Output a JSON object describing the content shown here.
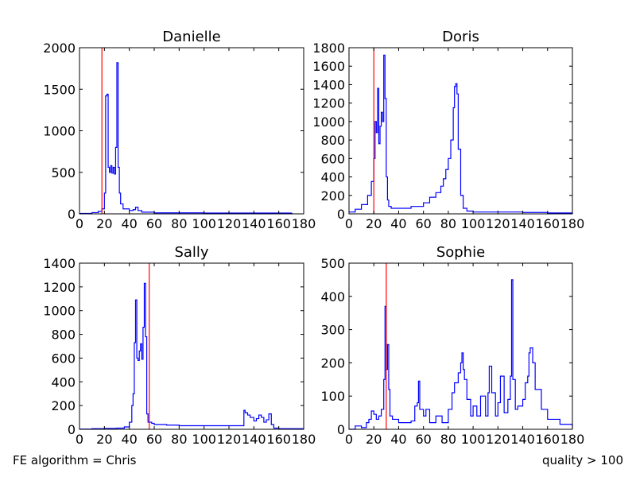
{
  "footer": {
    "left": "FE algorithm = Chris",
    "right": "quality > 100"
  },
  "colors": {
    "histogram": "#0000ff",
    "threshold": "#ff0000",
    "axes": "#000000"
  },
  "chart_data": [
    {
      "type": "histogram",
      "title": "Danielle",
      "xlim": [
        0,
        180
      ],
      "ylim": [
        0,
        2000
      ],
      "xticks": [
        0,
        20,
        40,
        60,
        80,
        100,
        120,
        140,
        160,
        180
      ],
      "yticks": [
        0,
        500,
        1000,
        1500,
        2000
      ],
      "threshold_x": 18,
      "bin_width": 1,
      "x": [
        0,
        10,
        15,
        18,
        20,
        21,
        22,
        23,
        24,
        25,
        26,
        27,
        28,
        29,
        30,
        31,
        32,
        33,
        35,
        40,
        43,
        45,
        47,
        50,
        60,
        100,
        140,
        170
      ],
      "values": [
        5,
        15,
        30,
        60,
        250,
        1420,
        1440,
        560,
        500,
        580,
        490,
        560,
        480,
        800,
        1820,
        560,
        250,
        120,
        60,
        40,
        50,
        80,
        40,
        20,
        12,
        10,
        10,
        5
      ]
    },
    {
      "type": "histogram",
      "title": "Doris",
      "xlim": [
        0,
        180
      ],
      "ylim": [
        0,
        1800
      ],
      "xticks": [
        0,
        20,
        40,
        60,
        80,
        100,
        120,
        140,
        160,
        180
      ],
      "yticks": [
        0,
        200,
        400,
        600,
        800,
        1000,
        1200,
        1400,
        1600,
        1800
      ],
      "threshold_x": 20,
      "bin_width": 1,
      "x": [
        0,
        5,
        10,
        15,
        18,
        20,
        21,
        22,
        23,
        24,
        25,
        26,
        27,
        28,
        29,
        30,
        31,
        32,
        34,
        40,
        50,
        60,
        65,
        70,
        74,
        76,
        78,
        80,
        82,
        84,
        85,
        86,
        87,
        88,
        90,
        92,
        95,
        100,
        120,
        140,
        160,
        180
      ],
      "values": [
        20,
        50,
        100,
        200,
        350,
        600,
        1000,
        880,
        1360,
        760,
        950,
        1100,
        1000,
        1720,
        1250,
        400,
        150,
        80,
        60,
        60,
        80,
        120,
        180,
        230,
        300,
        380,
        480,
        600,
        800,
        1150,
        1380,
        1410,
        1300,
        700,
        200,
        60,
        30,
        20,
        20,
        15,
        10,
        5
      ]
    },
    {
      "type": "histogram",
      "title": "Sally",
      "xlim": [
        0,
        180
      ],
      "ylim": [
        0,
        1400
      ],
      "xticks": [
        0,
        20,
        40,
        60,
        80,
        100,
        120,
        140,
        160,
        180
      ],
      "yticks": [
        0,
        200,
        400,
        600,
        800,
        1000,
        1200,
        1400
      ],
      "threshold_x": 56,
      "bin_width": 1,
      "x": [
        0,
        10,
        20,
        30,
        36,
        40,
        42,
        43,
        44,
        45,
        46,
        47,
        48,
        49,
        50,
        51,
        52,
        53,
        54,
        55,
        56,
        58,
        60,
        70,
        80,
        100,
        120,
        132,
        133,
        135,
        137,
        140,
        142,
        144,
        146,
        148,
        150,
        152,
        154,
        156,
        160,
        180
      ],
      "values": [
        2,
        5,
        8,
        10,
        20,
        60,
        200,
        300,
        730,
        1090,
        600,
        580,
        660,
        720,
        590,
        860,
        1230,
        780,
        130,
        60,
        60,
        50,
        40,
        35,
        30,
        30,
        30,
        160,
        140,
        120,
        100,
        70,
        90,
        120,
        100,
        60,
        80,
        130,
        40,
        10,
        5,
        2
      ]
    },
    {
      "type": "histogram",
      "title": "Sophie",
      "xlim": [
        0,
        180
      ],
      "ylim": [
        0,
        500
      ],
      "xticks": [
        0,
        20,
        40,
        60,
        80,
        100,
        120,
        140,
        160,
        180
      ],
      "yticks": [
        0,
        100,
        200,
        300,
        400,
        500
      ],
      "threshold_x": 30,
      "bin_width": 1,
      "x": [
        0,
        5,
        8,
        10,
        14,
        16,
        18,
        20,
        22,
        24,
        26,
        28,
        29,
        30,
        31,
        32,
        33,
        35,
        40,
        45,
        50,
        53,
        55,
        56,
        57,
        60,
        62,
        65,
        70,
        75,
        80,
        83,
        85,
        88,
        90,
        91,
        92,
        93,
        95,
        98,
        100,
        103,
        106,
        110,
        112,
        113,
        115,
        118,
        120,
        122,
        125,
        128,
        130,
        131,
        132,
        134,
        136,
        140,
        142,
        144,
        145,
        146,
        148,
        150,
        155,
        160,
        170,
        180
      ],
      "values": [
        0,
        10,
        10,
        5,
        20,
        30,
        55,
        45,
        30,
        40,
        60,
        150,
        370,
        180,
        255,
        120,
        40,
        30,
        20,
        20,
        25,
        70,
        80,
        145,
        60,
        40,
        60,
        20,
        40,
        20,
        60,
        110,
        140,
        170,
        200,
        230,
        180,
        150,
        90,
        40,
        70,
        40,
        100,
        40,
        110,
        190,
        110,
        40,
        80,
        160,
        50,
        90,
        160,
        450,
        150,
        60,
        70,
        90,
        140,
        160,
        230,
        245,
        200,
        120,
        60,
        30,
        15,
        5
      ]
    }
  ]
}
